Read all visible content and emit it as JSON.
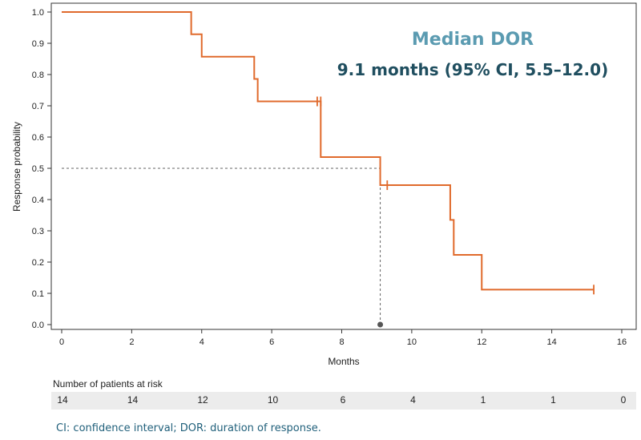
{
  "chart_data": {
    "type": "line",
    "subtype": "kaplan-meier step",
    "xlabel": "Months",
    "ylabel": "Response probability",
    "xlim": [
      0,
      16
    ],
    "ylim": [
      0,
      1.0
    ],
    "xticks": [
      "0",
      "2",
      "4",
      "6",
      "8",
      "10",
      "12",
      "14",
      "16"
    ],
    "yticks": [
      "0.0",
      "0.1",
      "0.2",
      "0.3",
      "0.4",
      "0.5",
      "0.6",
      "0.7",
      "0.8",
      "0.9",
      "1.0"
    ],
    "grid": false,
    "series": [
      {
        "color": "#e06a2c",
        "steps": [
          {
            "x": 0,
            "y": 1.0
          },
          {
            "x": 3.7,
            "y": 0.929
          },
          {
            "x": 4.0,
            "y": 0.857
          },
          {
            "x": 5.5,
            "y": 0.786
          },
          {
            "x": 5.6,
            "y": 0.714
          },
          {
            "x": 7.4,
            "y": 0.536
          },
          {
            "x": 9.1,
            "y": 0.446
          },
          {
            "x": 11.1,
            "y": 0.335
          },
          {
            "x": 11.2,
            "y": 0.223
          },
          {
            "x": 12.0,
            "y": 0.112
          }
        ],
        "end_x": 15.2,
        "censored": [
          {
            "x": 7.3,
            "y": 0.714
          },
          {
            "x": 7.4,
            "y": 0.714
          },
          {
            "x": 9.3,
            "y": 0.446
          },
          {
            "x": 15.2,
            "y": 0.112
          }
        ]
      }
    ],
    "reference": {
      "median_x": 9.1,
      "median_y": 0.5
    },
    "annotation": {
      "title": "Median DOR",
      "subtitle": "9.1 months (95% CI, 5.5–12.0)"
    },
    "risk_table": {
      "header": "Number of patients at risk",
      "times": [
        0,
        2,
        4,
        6,
        8,
        10,
        12,
        14,
        16
      ],
      "values": [
        "14",
        "14",
        "12",
        "10",
        "6",
        "4",
        "1",
        "1",
        "0"
      ]
    }
  },
  "footnote": "CI: confidence interval; DOR: duration of response."
}
